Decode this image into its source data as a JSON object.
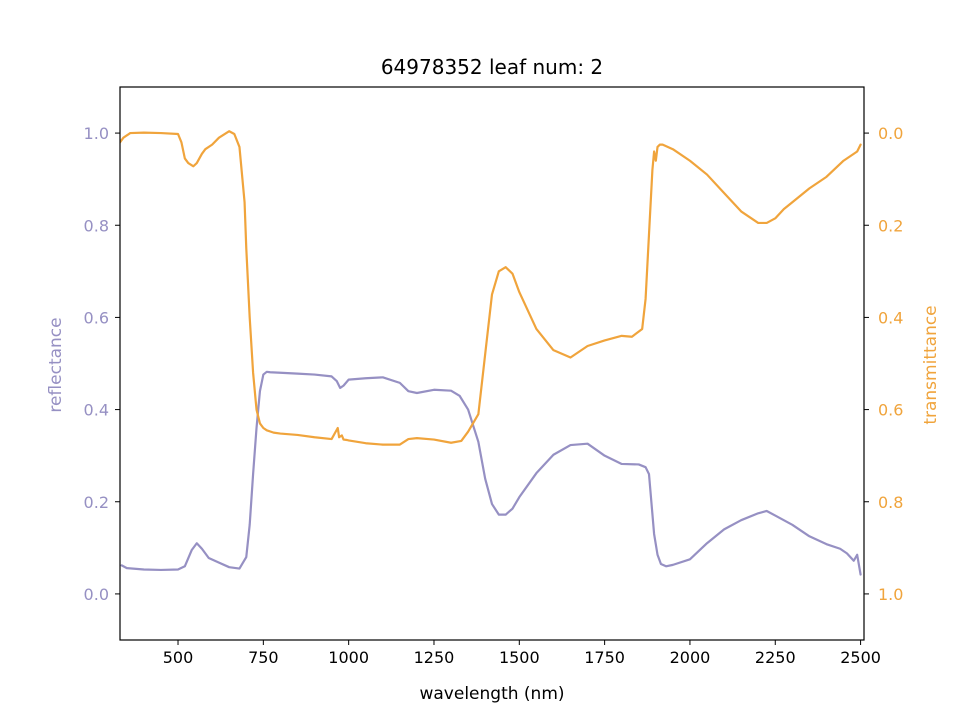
{
  "chart_data": {
    "type": "line",
    "title": "64978352 leaf num: 2",
    "xlabel": "wavelength (nm)",
    "xlim": [
      330,
      2510
    ],
    "x_ticks": [
      500,
      750,
      1000,
      1250,
      1500,
      1750,
      2000,
      2250,
      2500
    ],
    "grid": false,
    "legend": "none",
    "left_axis": {
      "label": "reflectance",
      "color": "#9690c3",
      "ylim": [
        -0.1,
        1.1
      ],
      "ticks": [
        0.0,
        0.2,
        0.4,
        0.6,
        0.8,
        1.0
      ],
      "tick_labels": [
        "0.0",
        "0.2",
        "0.4",
        "0.6",
        "0.8",
        "1.0"
      ]
    },
    "right_axis": {
      "label": "transmittance",
      "color": "#f0a43c",
      "inverted": true,
      "ylim": [
        1.1,
        -0.1
      ],
      "ticks": [
        0.0,
        0.2,
        0.4,
        0.6,
        0.8,
        1.0
      ],
      "tick_labels": [
        "0.0",
        "0.2",
        "0.4",
        "0.6",
        "0.8",
        "1.0"
      ]
    },
    "series": [
      {
        "axis": "left",
        "color": "#9690c3",
        "x": [
          335,
          350,
          400,
          450,
          500,
          520,
          540,
          555,
          570,
          590,
          620,
          650,
          680,
          700,
          710,
          720,
          730,
          740,
          750,
          760,
          770,
          800,
          850,
          900,
          950,
          965,
          975,
          985,
          1000,
          1050,
          1100,
          1150,
          1175,
          1200,
          1250,
          1300,
          1325,
          1350,
          1380,
          1400,
          1420,
          1440,
          1460,
          1480,
          1500,
          1550,
          1600,
          1650,
          1700,
          1750,
          1800,
          1850,
          1870,
          1880,
          1895,
          1905,
          1915,
          1930,
          1950,
          2000,
          2050,
          2100,
          2150,
          2200,
          2225,
          2250,
          2300,
          2350,
          2400,
          2440,
          2460,
          2480,
          2490,
          2500
        ],
        "y": [
          0.062,
          0.056,
          0.053,
          0.052,
          0.053,
          0.06,
          0.095,
          0.11,
          0.098,
          0.078,
          0.068,
          0.058,
          0.055,
          0.08,
          0.15,
          0.26,
          0.36,
          0.44,
          0.476,
          0.482,
          0.481,
          0.48,
          0.478,
          0.476,
          0.472,
          0.462,
          0.447,
          0.452,
          0.465,
          0.468,
          0.47,
          0.458,
          0.44,
          0.436,
          0.443,
          0.441,
          0.43,
          0.4,
          0.33,
          0.25,
          0.195,
          0.172,
          0.172,
          0.185,
          0.21,
          0.262,
          0.302,
          0.323,
          0.326,
          0.3,
          0.282,
          0.281,
          0.275,
          0.26,
          0.13,
          0.085,
          0.065,
          0.06,
          0.063,
          0.075,
          0.11,
          0.14,
          0.16,
          0.175,
          0.18,
          0.17,
          0.15,
          0.125,
          0.108,
          0.098,
          0.088,
          0.072,
          0.085,
          0.042
        ]
      },
      {
        "axis": "right",
        "color": "#f0a43c",
        "x": [
          330,
          340,
          360,
          400,
          450,
          500,
          510,
          520,
          530,
          545,
          555,
          570,
          580,
          600,
          620,
          650,
          665,
          680,
          695,
          700,
          710,
          720,
          730,
          740,
          750,
          760,
          780,
          800,
          850,
          900,
          950,
          968,
          972,
          980,
          985,
          995,
          1000,
          1050,
          1100,
          1150,
          1175,
          1200,
          1250,
          1300,
          1330,
          1350,
          1380,
          1400,
          1420,
          1440,
          1460,
          1480,
          1500,
          1550,
          1600,
          1650,
          1700,
          1750,
          1800,
          1830,
          1860,
          1870,
          1880,
          1890,
          1895,
          1900,
          1905,
          1912,
          1920,
          1950,
          2000,
          2050,
          2100,
          2150,
          2200,
          2225,
          2250,
          2275,
          2300,
          2350,
          2400,
          2450,
          2470,
          2490,
          2500
        ],
        "y": [
          0.02,
          0.01,
          0.0,
          -0.001,
          0.0,
          0.002,
          0.02,
          0.055,
          0.065,
          0.072,
          0.065,
          0.045,
          0.035,
          0.025,
          0.01,
          -0.004,
          0.002,
          0.03,
          0.15,
          0.25,
          0.4,
          0.52,
          0.6,
          0.63,
          0.64,
          0.645,
          0.65,
          0.652,
          0.655,
          0.66,
          0.664,
          0.64,
          0.66,
          0.656,
          0.665,
          0.666,
          0.667,
          0.673,
          0.676,
          0.676,
          0.664,
          0.662,
          0.665,
          0.672,
          0.668,
          0.648,
          0.61,
          0.48,
          0.35,
          0.3,
          0.291,
          0.305,
          0.345,
          0.425,
          0.471,
          0.487,
          0.462,
          0.45,
          0.44,
          0.442,
          0.425,
          0.36,
          0.22,
          0.08,
          0.04,
          0.06,
          0.03,
          0.025,
          0.025,
          0.035,
          0.06,
          0.09,
          0.13,
          0.17,
          0.195,
          0.195,
          0.185,
          0.165,
          0.15,
          0.12,
          0.095,
          0.06,
          0.05,
          0.04,
          0.025
        ]
      }
    ]
  }
}
